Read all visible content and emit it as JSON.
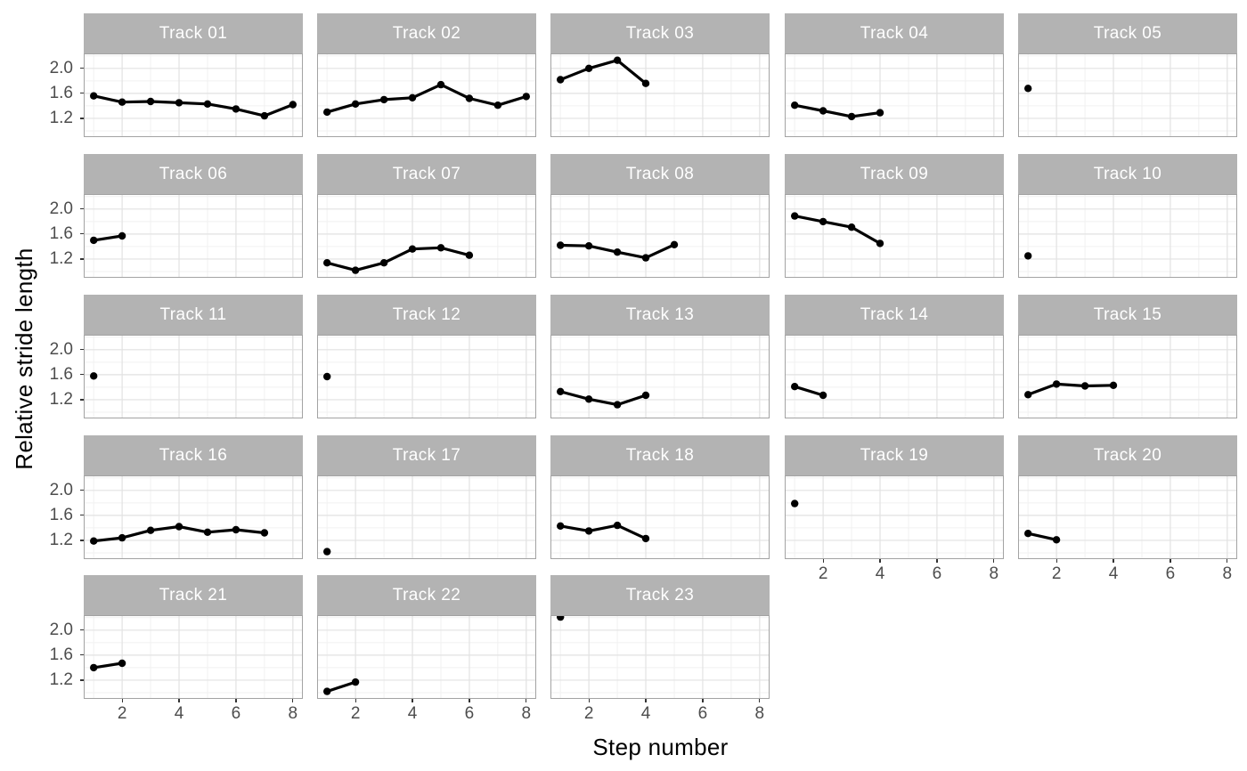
{
  "colors": {
    "background": "#ffffff",
    "strip_fill": "#b3b3b3",
    "strip_text": "#ffffff",
    "panel_fill": "#ffffff",
    "panel_border": "#a3a3a3",
    "grid_major": "#e2e2e2",
    "grid_minor": "#f1f1f1",
    "tick_label": "#4d4d4d",
    "axis_title": "#000000",
    "data": "#000000"
  },
  "chart_data": {
    "type": "line",
    "title": "",
    "xlabel": "Step number",
    "ylabel": "Relative stride length",
    "facet_variable": "Track",
    "legend": "none",
    "grid": "major+minor",
    "marker": "filled-circle",
    "xlim": [
      0.65,
      8.35
    ],
    "ylim": [
      0.9,
      2.24
    ],
    "x_ticks": [
      2,
      4,
      6,
      8
    ],
    "x_tick_display": [
      "2",
      "4",
      "6",
      "8"
    ],
    "x_minor_breaks": [
      1,
      3,
      5,
      7
    ],
    "y_ticks": [
      2.0,
      1.6,
      1.2
    ],
    "y_tick_display": [
      "2.0",
      "1.6",
      "1.2"
    ],
    "y_minor_breaks": [
      1.0,
      1.4,
      1.8,
      2.2
    ],
    "panels": [
      {
        "label": "Track 01",
        "x": [
          1,
          2,
          3,
          4,
          5,
          6,
          7,
          8
        ],
        "y": [
          1.56,
          1.46,
          1.47,
          1.45,
          1.43,
          1.35,
          1.24,
          1.42
        ]
      },
      {
        "label": "Track 02",
        "x": [
          1,
          2,
          3,
          4,
          5,
          6,
          7,
          8
        ],
        "y": [
          1.3,
          1.43,
          1.5,
          1.53,
          1.74,
          1.52,
          1.41,
          1.55
        ]
      },
      {
        "label": "Track 03",
        "x": [
          1,
          2,
          3,
          4
        ],
        "y": [
          1.82,
          2.0,
          2.13,
          1.76
        ]
      },
      {
        "label": "Track 04",
        "x": [
          1,
          2,
          3,
          4
        ],
        "y": [
          1.41,
          1.32,
          1.23,
          1.29
        ]
      },
      {
        "label": "Track 05",
        "x": [
          1
        ],
        "y": [
          1.68
        ]
      },
      {
        "label": "Track 06",
        "x": [
          1,
          2
        ],
        "y": [
          1.5,
          1.57
        ]
      },
      {
        "label": "Track 07",
        "x": [
          1,
          2,
          3,
          4,
          5,
          6
        ],
        "y": [
          1.14,
          1.02,
          1.14,
          1.36,
          1.38,
          1.26
        ]
      },
      {
        "label": "Track 08",
        "x": [
          1,
          2,
          3,
          4,
          5
        ],
        "y": [
          1.42,
          1.41,
          1.31,
          1.22,
          1.43
        ]
      },
      {
        "label": "Track 09",
        "x": [
          1,
          2,
          3,
          4
        ],
        "y": [
          1.89,
          1.8,
          1.71,
          1.45
        ]
      },
      {
        "label": "Track 10",
        "x": [
          1
        ],
        "y": [
          1.25
        ]
      },
      {
        "label": "Track 11",
        "x": [
          1
        ],
        "y": [
          1.58
        ]
      },
      {
        "label": "Track 12",
        "x": [
          1
        ],
        "y": [
          1.57
        ]
      },
      {
        "label": "Track 13",
        "x": [
          1,
          2,
          3,
          4
        ],
        "y": [
          1.33,
          1.21,
          1.12,
          1.27
        ]
      },
      {
        "label": "Track 14",
        "x": [
          1,
          2
        ],
        "y": [
          1.41,
          1.27
        ]
      },
      {
        "label": "Track 15",
        "x": [
          1,
          2,
          3,
          4
        ],
        "y": [
          1.28,
          1.45,
          1.42,
          1.43
        ]
      },
      {
        "label": "Track 16",
        "x": [
          1,
          2,
          3,
          4,
          5,
          6,
          7
        ],
        "y": [
          1.19,
          1.24,
          1.36,
          1.42,
          1.33,
          1.37,
          1.32
        ]
      },
      {
        "label": "Track 17",
        "x": [
          1
        ],
        "y": [
          1.02
        ]
      },
      {
        "label": "Track 18",
        "x": [
          1,
          2,
          3,
          4
        ],
        "y": [
          1.43,
          1.35,
          1.44,
          1.23
        ]
      },
      {
        "label": "Track 19",
        "x": [
          1
        ],
        "y": [
          1.79
        ]
      },
      {
        "label": "Track 20",
        "x": [
          1,
          2
        ],
        "y": [
          1.31,
          1.21
        ]
      },
      {
        "label": "Track 21",
        "x": [
          1,
          2
        ],
        "y": [
          1.4,
          1.47
        ]
      },
      {
        "label": "Track 22",
        "x": [
          1,
          2
        ],
        "y": [
          1.02,
          1.17
        ]
      },
      {
        "label": "Track 23",
        "x": [
          1
        ],
        "y": [
          2.21
        ]
      }
    ]
  }
}
